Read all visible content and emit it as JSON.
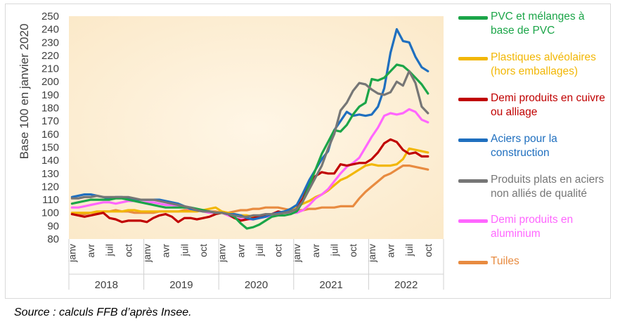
{
  "chart_data": {
    "type": "line",
    "title": "",
    "ylabel": "Base 100 en janvier 2020",
    "xlabel": "",
    "ylim": [
      80,
      250
    ],
    "yticks": [
      80,
      90,
      100,
      110,
      120,
      130,
      140,
      150,
      160,
      170,
      180,
      190,
      200,
      210,
      220,
      230,
      240,
      250
    ],
    "months": [
      "janv",
      "avr",
      "juil",
      "oct"
    ],
    "years": [
      "2018",
      "2019",
      "2020",
      "2021",
      "2022"
    ],
    "n_points": 58,
    "grid": false,
    "legend": "right",
    "series": [
      {
        "name": "Tuiles",
        "color": "#E88B40",
        "values": [
          99,
          99,
          99,
          100,
          100,
          101,
          101,
          102,
          101,
          101,
          100,
          100,
          100,
          100,
          101,
          101,
          101,
          101,
          102,
          102,
          102,
          102,
          101,
          101,
          100,
          100,
          101,
          102,
          102,
          103,
          103,
          104,
          104,
          104,
          103,
          102,
          102,
          102,
          103,
          103,
          104,
          104,
          104,
          105,
          105,
          105,
          111,
          116,
          120,
          124,
          128,
          130,
          133,
          136,
          136,
          135,
          134,
          133
        ]
      },
      {
        "name": "Plastiques alvéolaires (hors emballages)",
        "color": "#F2B705",
        "values": [
          100,
          100,
          100,
          100,
          101,
          101,
          101,
          101,
          101,
          102,
          102,
          101,
          101,
          101,
          101,
          101,
          101,
          101,
          101,
          101,
          101,
          102,
          103,
          104,
          101,
          100,
          99,
          98,
          98,
          97,
          97,
          98,
          99,
          100,
          101,
          103,
          105,
          107,
          109,
          112,
          114,
          117,
          121,
          125,
          127,
          130,
          133,
          136,
          137,
          136,
          136,
          136,
          137,
          141,
          149,
          148,
          147,
          146
        ]
      },
      {
        "name": "Demi produits en aluminium",
        "color": "#FF66FF",
        "values": [
          104,
          104,
          105,
          106,
          107,
          108,
          108,
          107,
          108,
          109,
          109,
          108,
          108,
          108,
          107,
          106,
          106,
          105,
          104,
          103,
          102,
          101,
          100,
          100,
          100,
          98,
          96,
          95,
          95,
          95,
          96,
          97,
          97,
          99,
          100,
          100,
          100,
          102,
          106,
          111,
          114,
          118,
          124,
          130,
          135,
          138,
          142,
          150,
          158,
          165,
          174,
          176,
          175,
          176,
          179,
          177,
          171,
          169
        ]
      },
      {
        "name": "Demi produits en cuivre ou alliage",
        "color": "#C00000",
        "values": [
          99,
          98,
          97,
          98,
          99,
          100,
          96,
          95,
          93,
          94,
          94,
          94,
          93,
          96,
          98,
          99,
          97,
          93,
          96,
          96,
          95,
          96,
          97,
          99,
          100,
          99,
          96,
          94,
          95,
          96,
          97,
          98,
          99,
          101,
          100,
          101,
          103,
          111,
          122,
          128,
          131,
          130,
          130,
          137,
          136,
          137,
          138,
          138,
          141,
          146,
          153,
          156,
          154,
          148,
          145,
          146,
          143,
          143
        ]
      },
      {
        "name": "Aciers pour la construction",
        "color": "#1F6FBF",
        "values": [
          112,
          113,
          114,
          114,
          113,
          112,
          111,
          112,
          112,
          111,
          110,
          110,
          110,
          110,
          110,
          109,
          108,
          107,
          105,
          103,
          102,
          101,
          101,
          100,
          100,
          99,
          99,
          98,
          96,
          95,
          96,
          97,
          99,
          100,
          101,
          103,
          106,
          115,
          125,
          133,
          141,
          147,
          163,
          170,
          177,
          174,
          175,
          174,
          175,
          181,
          195,
          222,
          240,
          231,
          230,
          219,
          211,
          208
        ]
      },
      {
        "name": "PVC et mélanges à base de PVC",
        "color": "#1BA548",
        "values": [
          107,
          108,
          109,
          110,
          110,
          110,
          110,
          111,
          111,
          110,
          109,
          108,
          107,
          106,
          105,
          104,
          104,
          104,
          104,
          104,
          103,
          102,
          101,
          100,
          100,
          99,
          97,
          92,
          88,
          89,
          91,
          94,
          97,
          98,
          98,
          99,
          101,
          109,
          121,
          133,
          145,
          154,
          163,
          162,
          167,
          175,
          181,
          184,
          202,
          201,
          203,
          208,
          213,
          212,
          208,
          203,
          198,
          191
        ]
      },
      {
        "name": "Produits plats en aciers non alliés de qualité",
        "color": "#767676",
        "values": [
          111,
          111,
          112,
          112,
          113,
          112,
          112,
          112,
          112,
          112,
          111,
          110,
          110,
          110,
          109,
          108,
          107,
          106,
          105,
          104,
          102,
          101,
          101,
          100,
          100,
          99,
          98,
          97,
          97,
          98,
          98,
          99,
          99,
          99,
          100,
          101,
          103,
          109,
          118,
          127,
          136,
          149,
          160,
          178,
          184,
          193,
          199,
          198,
          194,
          191,
          190,
          192,
          200,
          197,
          208,
          199,
          181,
          176
        ]
      }
    ],
    "legend_entries": [
      {
        "label": "PVC et mélanges à base de PVC",
        "color": "#1BA548"
      },
      {
        "label": "Plastiques alvéolaires (hors emballages)",
        "color": "#F2B705"
      },
      {
        "label": "Demi produits en cuivre ou alliage",
        "color": "#C00000"
      },
      {
        "label": "Aciers pour la construction",
        "color": "#1F6FBF"
      },
      {
        "label": "Produits plats en aciers non alliés de qualité",
        "color": "#767676"
      },
      {
        "label": "Demi produits en aluminium",
        "color": "#FF66FF"
      },
      {
        "label": "Tuiles",
        "color": "#E88B40"
      }
    ]
  },
  "source": "Source : calculs FFB d’après Insee."
}
